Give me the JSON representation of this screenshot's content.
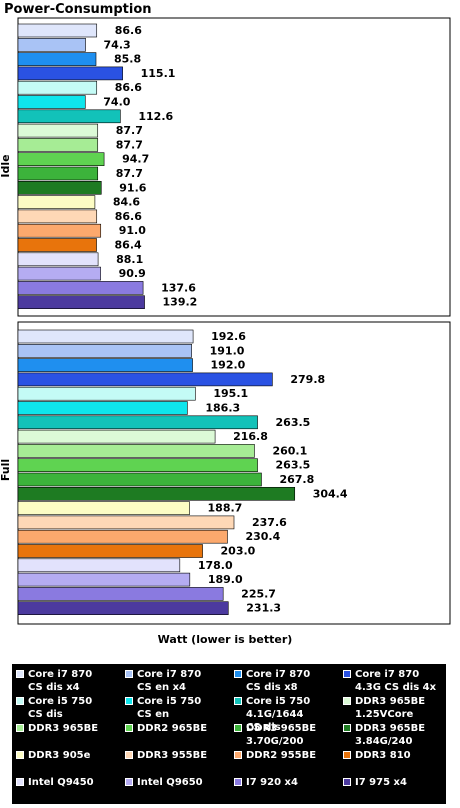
{
  "chart_data": {
    "type": "bar",
    "orientation": "horizontal",
    "title": "Power-Consumption",
    "xlabel": "Watt (lower is better)",
    "xlim": [
      0,
      330
    ],
    "grid": false,
    "legend_position": "bottom",
    "groups": [
      {
        "name": "Idle",
        "values": [
          86.6,
          74.3,
          85.8,
          115.1,
          86.6,
          74.0,
          112.6,
          87.7,
          87.7,
          94.7,
          87.7,
          91.6,
          84.6,
          86.6,
          91.0,
          86.4,
          88.1,
          90.9,
          137.6,
          139.2
        ],
        "labels": [
          "86.6",
          "74.3",
          "85.8",
          "115.1",
          "86.6",
          "74.0",
          "112.6",
          "87.7",
          "87.7",
          "94.7",
          "87.7",
          "91.6",
          "84.6",
          "86.6",
          "91.0",
          "86.4",
          "88.1",
          "90.9",
          "137.6",
          "139.2"
        ]
      },
      {
        "name": "Full",
        "values": [
          192.6,
          191.0,
          192.0,
          279.8,
          195.1,
          186.3,
          263.5,
          216.8,
          260.1,
          263.5,
          267.8,
          304.4,
          188.7,
          237.6,
          230.4,
          203.0,
          178.0,
          189.0,
          225.7,
          231.3
        ],
        "labels": [
          "192.6",
          "191.0",
          "192.0",
          "279.8",
          "195.1",
          "186.3",
          "263.5",
          "216.8",
          "260.1",
          "263.5",
          "267.8",
          "304.4",
          "188.7",
          "237.6",
          "230.4",
          "203.0",
          "178.0",
          "189.0",
          "225.7",
          "231.3"
        ]
      }
    ],
    "series": [
      {
        "name": "Core i7 870\nCS dis x4",
        "color": "#dfe6fb"
      },
      {
        "name": "Core i7 870\nCS en x4",
        "color": "#a9c3f5"
      },
      {
        "name": "Core i7 870\nCS dis x8",
        "color": "#1f8fef"
      },
      {
        "name": "Core i7 870\n4.3G CS dis 4x",
        "color": "#2a52e3"
      },
      {
        "name": "Core i5 750\nCS dis",
        "color": "#c4fbf6"
      },
      {
        "name": "Core i5 750\nCS en",
        "color": "#0fe5ec"
      },
      {
        "name": "Core i5 750\n4.1G/1644\nCS dis",
        "color": "#12c2b9"
      },
      {
        "name": "DDR3 965BE\n1.25VCore",
        "color": "#dcfad7"
      },
      {
        "name": "DDR3 965BE",
        "color": "#a6ec95"
      },
      {
        "name": "DDR2 965BE",
        "color": "#5fd351"
      },
      {
        "name": "DDR3 965BE\n3.70G/200",
        "color": "#3cb33b"
      },
      {
        "name": "DDR3 965BE\n3.84G/240",
        "color": "#1e7b22"
      },
      {
        "name": "DDR3 905e",
        "color": "#fcfcc4"
      },
      {
        "name": "DDR3 955BE",
        "color": "#fed8b6"
      },
      {
        "name": "DDR2 955BE",
        "color": "#fca96d"
      },
      {
        "name": "DDR3 810",
        "color": "#e8740c"
      },
      {
        "name": "Intel Q9450",
        "color": "#e2e2fc"
      },
      {
        "name": "Intel Q9650",
        "color": "#b5acf2"
      },
      {
        "name": "I7 920 x4",
        "color": "#8a7ae0"
      },
      {
        "name": "I7 975 x4",
        "color": "#4c3a9f"
      }
    ]
  }
}
